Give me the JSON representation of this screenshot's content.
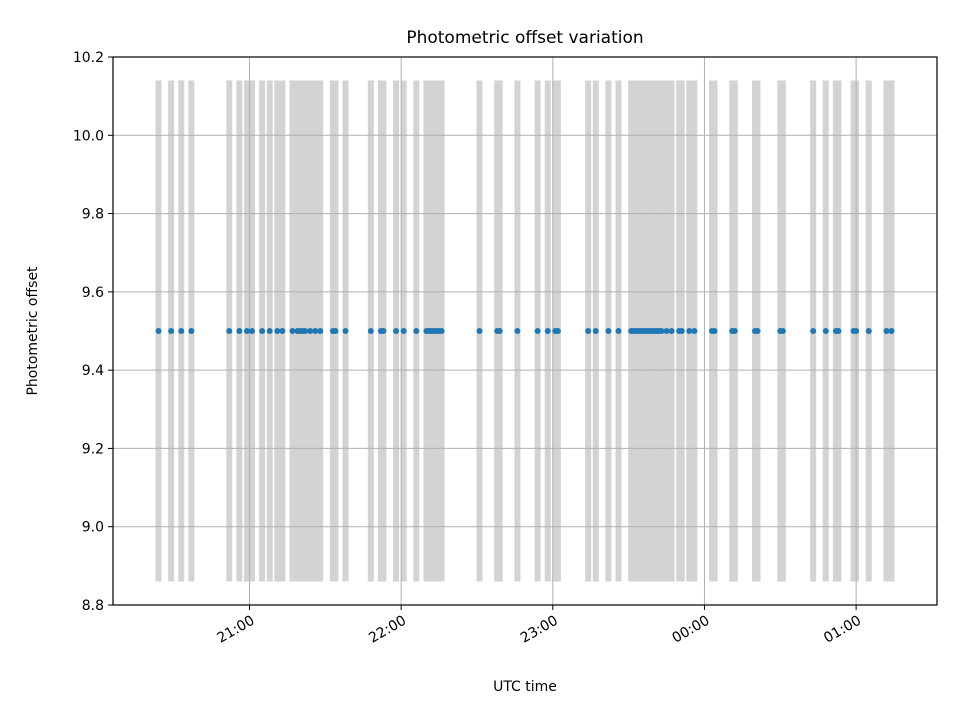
{
  "chart_data": {
    "type": "scatter",
    "title": "Photometric offset variation",
    "xlabel": "UTC time",
    "ylabel": "Photometric offset",
    "xlim": [
      "20:06",
      "01:32"
    ],
    "ylim": [
      8.8,
      10.2
    ],
    "x_ticks": [
      {
        "time": "21:00",
        "label": "21:00"
      },
      {
        "time": "22:00",
        "label": "22:00"
      },
      {
        "time": "23:00",
        "label": "23:00"
      },
      {
        "time": "00:00",
        "label": "00:00"
      },
      {
        "time": "01:00",
        "label": "01:00"
      }
    ],
    "y_ticks": [
      8.8,
      9.0,
      9.2,
      9.4,
      9.6,
      9.8,
      10.0,
      10.2
    ],
    "grid": true,
    "colors": {
      "points": "#1f77b4",
      "bars": "#d3d3d3",
      "grid": "#b0b0b0"
    },
    "observation_bars": {
      "ymin": 8.86,
      "ymax": 10.14,
      "times": [
        "20:24",
        "20:29",
        "20:33",
        "20:37",
        "20:52",
        "20:56",
        "20:59",
        "21:01",
        "21:05",
        "21:08",
        "21:11",
        "21:13",
        "21:17",
        "21:19",
        "21:20",
        "21:21",
        "21:22",
        "21:24",
        "21:26",
        "21:28",
        "21:33",
        "21:34",
        "21:38",
        "21:48",
        "21:52",
        "21:53",
        "21:58",
        "22:01",
        "22:06",
        "22:10",
        "22:11",
        "22:12",
        "22:13",
        "22:14",
        "22:15",
        "22:16",
        "22:31",
        "22:38",
        "22:39",
        "22:46",
        "22:54",
        "22:58",
        "23:01",
        "23:02",
        "23:14",
        "23:17",
        "23:22",
        "23:26",
        "23:31",
        "23:32",
        "23:33",
        "23:34",
        "23:35",
        "23:36",
        "23:37",
        "23:38",
        "23:39",
        "23:40",
        "23:41",
        "23:42",
        "23:43",
        "23:45",
        "23:47",
        "23:50",
        "23:51",
        "23:54",
        "23:56",
        "24:03",
        "24:04",
        "24:11",
        "24:12",
        "24:20",
        "24:21",
        "24:30",
        "24:31",
        "24:43",
        "24:48",
        "24:52",
        "24:53",
        "24:59",
        "25:00",
        "25:05",
        "25:12",
        "25:14"
      ]
    },
    "series": [
      {
        "x": [
          "20:24",
          "20:29",
          "20:33",
          "20:37",
          "20:52",
          "20:56",
          "20:59",
          "21:01",
          "21:05",
          "21:08",
          "21:11",
          "21:13",
          "21:17",
          "21:19",
          "21:20",
          "21:21",
          "21:22",
          "21:24",
          "21:26",
          "21:28",
          "21:33",
          "21:34",
          "21:38",
          "21:48",
          "21:52",
          "21:53",
          "21:58",
          "22:01",
          "22:06",
          "22:10",
          "22:11",
          "22:12",
          "22:13",
          "22:14",
          "22:15",
          "22:16",
          "22:31",
          "22:38",
          "22:39",
          "22:46",
          "22:54",
          "22:58",
          "23:01",
          "23:02",
          "23:14",
          "23:17",
          "23:22",
          "23:26",
          "23:31",
          "23:32",
          "23:33",
          "23:34",
          "23:35",
          "23:36",
          "23:37",
          "23:38",
          "23:39",
          "23:40",
          "23:41",
          "23:42",
          "23:43",
          "23:45",
          "23:47",
          "23:50",
          "23:51",
          "23:54",
          "23:56",
          "24:03",
          "24:04",
          "24:11",
          "24:12",
          "24:20",
          "24:21",
          "24:30",
          "24:31",
          "24:43",
          "24:48",
          "24:52",
          "24:53",
          "24:59",
          "25:00",
          "25:05",
          "25:12",
          "25:14"
        ],
        "y": [
          9.5,
          9.5,
          9.5,
          9.5,
          9.5,
          9.5,
          9.5,
          9.5,
          9.5,
          9.5,
          9.5,
          9.5,
          9.5,
          9.5,
          9.5,
          9.5,
          9.5,
          9.5,
          9.5,
          9.5,
          9.5,
          9.5,
          9.5,
          9.5,
          9.5,
          9.5,
          9.5,
          9.5,
          9.5,
          9.5,
          9.5,
          9.5,
          9.5,
          9.5,
          9.5,
          9.5,
          9.5,
          9.5,
          9.5,
          9.5,
          9.5,
          9.5,
          9.5,
          9.5,
          9.5,
          9.5,
          9.5,
          9.5,
          9.5,
          9.5,
          9.5,
          9.5,
          9.5,
          9.5,
          9.5,
          9.5,
          9.5,
          9.5,
          9.5,
          9.5,
          9.5,
          9.5,
          9.5,
          9.5,
          9.5,
          9.5,
          9.5,
          9.5,
          9.5,
          9.5,
          9.5,
          9.5,
          9.5,
          9.5,
          9.5,
          9.5,
          9.5,
          9.5,
          9.5,
          9.5,
          9.5,
          9.5,
          9.5,
          9.5
        ]
      }
    ]
  }
}
